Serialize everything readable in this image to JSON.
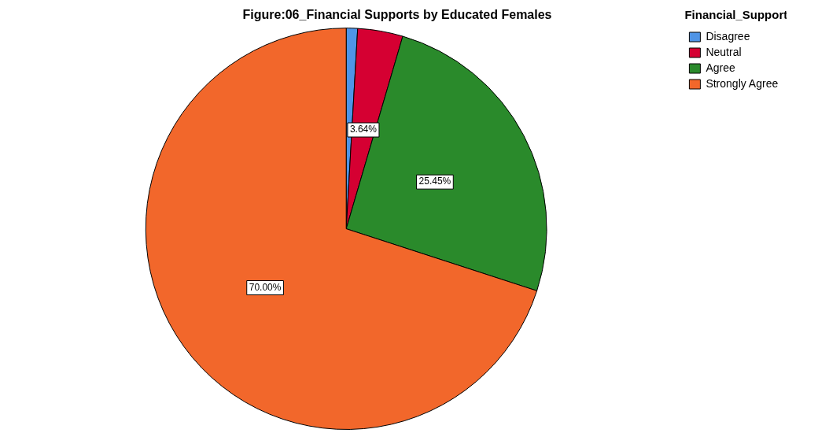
{
  "chart_data": {
    "type": "pie",
    "title": "Figure:06_Financial Supports by Educated Females",
    "legend_title": "Financial_Support",
    "legend": "top right",
    "categories": [
      "Disagree",
      "Neutral",
      "Agree",
      "Strongly Agree"
    ],
    "values": [
      0.91,
      3.64,
      25.45,
      70.0
    ],
    "colors": [
      "#4f94e6",
      "#d50032",
      "#2a8a2b",
      "#f2672b"
    ],
    "value_labels": [
      null,
      "3.64%",
      "25.45%",
      "70.00%"
    ]
  }
}
